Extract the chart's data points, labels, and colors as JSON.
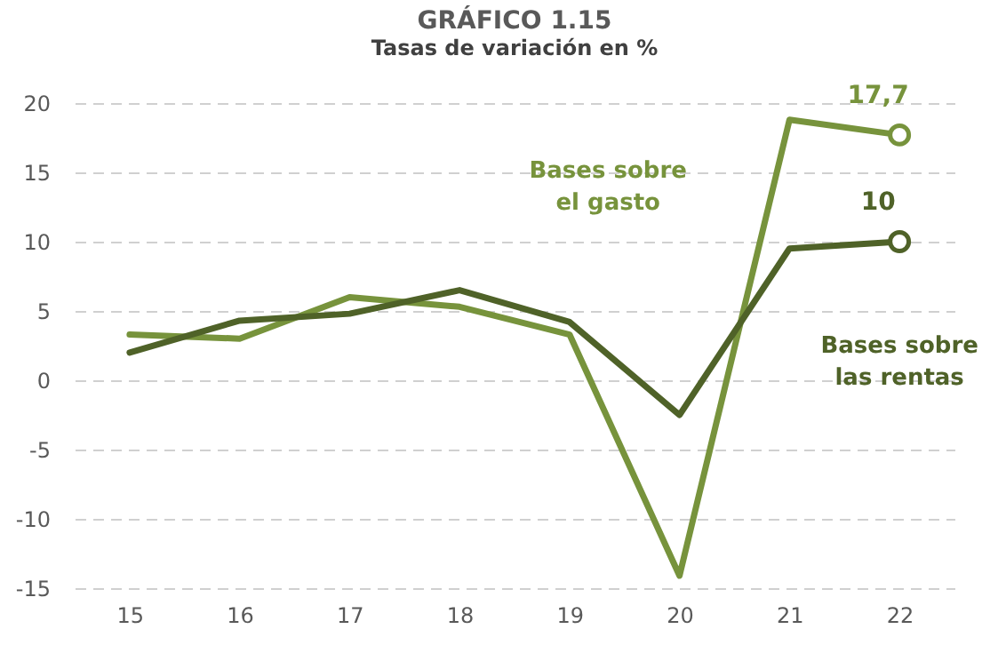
{
  "chart_data": {
    "type": "line",
    "title": "GRÁFICO 1.15",
    "subtitle": "Tasas de variación en %",
    "categories": [
      "15",
      "16",
      "17",
      "18",
      "19",
      "20",
      "21",
      "22"
    ],
    "series": [
      {
        "name": "Bases sobre el gasto",
        "color": "#77933c",
        "values": [
          3.3,
          3.0,
          6.0,
          5.3,
          3.3,
          -14.1,
          18.8,
          17.7
        ],
        "value_labels": [
          null,
          null,
          null,
          null,
          null,
          null,
          null,
          "17,7"
        ]
      },
      {
        "name": "Bases sobre las rentas",
        "color": "#4f6228",
        "values": [
          2.0,
          4.3,
          4.8,
          6.5,
          4.2,
          -2.5,
          9.5,
          10
        ],
        "value_labels": [
          null,
          null,
          null,
          null,
          null,
          null,
          null,
          "10"
        ]
      }
    ],
    "ylim": [
      -15,
      20
    ],
    "yticks": [
      -15,
      -10,
      -5,
      0,
      5,
      10,
      15,
      20
    ],
    "grid": "y",
    "legend": false
  }
}
